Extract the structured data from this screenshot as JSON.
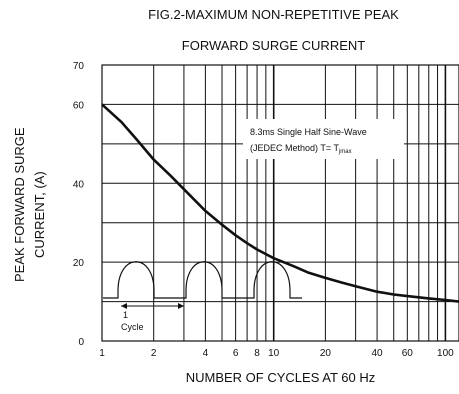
{
  "chart_data": {
    "type": "line",
    "title_line1": "FIG.2-MAXIMUM NON-REPETITIVE PEAK",
    "title_line2": "FORWARD SURGE CURRENT",
    "xlabel": "NUMBER OF CYCLES AT 60 Hz",
    "ylabel_line1": "PEAK FORWARD SURGE",
    "ylabel_line2": "CURRENT, (A)",
    "x_scale": "log",
    "xlim": [
      1,
      120
    ],
    "ylim": [
      0,
      70
    ],
    "x_ticks": [
      1,
      2,
      4,
      6,
      8,
      10,
      20,
      40,
      60,
      100
    ],
    "y_ticks": [
      0,
      20,
      40,
      60,
      70
    ],
    "grid": true,
    "series": [
      {
        "x": [
          1,
          1.3,
          1.6,
          2,
          2.5,
          3,
          4,
          5,
          6,
          7,
          8,
          10,
          13,
          16,
          20,
          25,
          30,
          40,
          50,
          60,
          80,
          100,
          120
        ],
        "values": [
          60,
          55.5,
          51,
          46,
          42,
          38.5,
          33,
          29.5,
          26.8,
          24.8,
          23.2,
          21,
          19,
          17.3,
          16,
          14.8,
          13.9,
          12.5,
          11.8,
          11.4,
          10.8,
          10.4,
          10
        ]
      }
    ],
    "annotation": {
      "line1": "8.3ms Single Half Sine-Wave",
      "line2_prefix": "(JEDEC Method) T= T",
      "line2_sub": "jmax"
    },
    "inset_label_count": "1",
    "inset_label_text": "Cycle"
  }
}
